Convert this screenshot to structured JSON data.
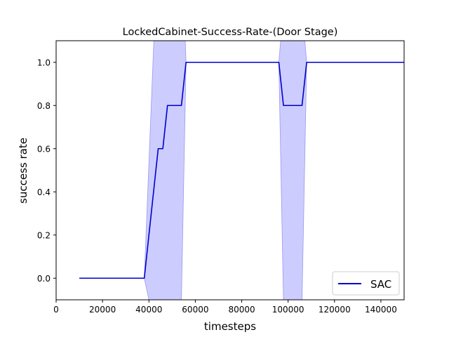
{
  "chart_data": {
    "type": "line",
    "title": "LockedCabinet-Success-Rate-(Door Stage)",
    "xlabel": "timesteps",
    "ylabel": "success rate",
    "xlim": [
      0,
      150000
    ],
    "ylim": [
      -0.1,
      1.1
    ],
    "xticks": [
      0,
      20000,
      40000,
      60000,
      80000,
      100000,
      120000,
      140000
    ],
    "xtick_labels": [
      "0",
      "20000",
      "40000",
      "60000",
      "80000",
      "100000",
      "120000",
      "140000"
    ],
    "yticks": [
      0.0,
      0.2,
      0.4,
      0.6,
      0.8,
      1.0
    ],
    "ytick_labels": [
      "0.0",
      "0.2",
      "0.4",
      "0.6",
      "0.8",
      "1.0"
    ],
    "grid": false,
    "legend_position": "bottom-right",
    "series": [
      {
        "name": "SAC",
        "color": "#0000cc",
        "band_color": "#ccccff",
        "x": [
          10000,
          38000,
          44000,
          46000,
          48000,
          54000,
          56000,
          96000,
          98000,
          106000,
          108000,
          150000
        ],
        "y": [
          0.0,
          0.0,
          0.6,
          0.6,
          0.8,
          0.8,
          1.0,
          1.0,
          0.8,
          0.8,
          1.0,
          1.0
        ],
        "band_upper": [
          0.0,
          0.0,
          1.6,
          1.6,
          1.6,
          1.6,
          1.0,
          1.0,
          1.25,
          1.25,
          1.0,
          1.0
        ],
        "band_lower": [
          0.0,
          0.0,
          -0.3,
          -0.3,
          -0.1,
          -0.1,
          1.0,
          1.0,
          -0.1,
          -0.1,
          1.0,
          1.0
        ]
      }
    ]
  }
}
